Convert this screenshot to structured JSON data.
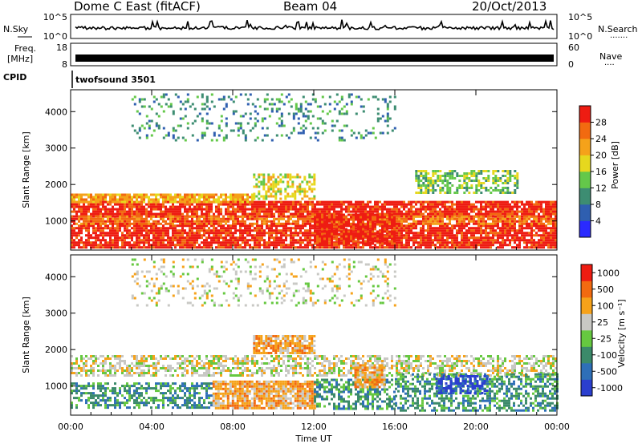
{
  "header": {
    "station": "Dome C East (fitACF)",
    "beam": "Beam 04",
    "date": "20/Oct/2013"
  },
  "sky_panel": {
    "left_label": "N.Sky",
    "right_label": "N.Search",
    "right_dots": "·······",
    "tick_top_left": "10^5",
    "tick_bottom_left": "10^0",
    "tick_top_right": "10^5",
    "tick_bottom_right": "10^0"
  },
  "freq_panel": {
    "left_label_1": "Freq.",
    "left_label_2": "[MHz]",
    "right_label": "Nave",
    "right_dots": "····",
    "tick_top_left": "18",
    "tick_bottom_left": "8",
    "tick_top_right": "60",
    "tick_bottom_right": "0"
  },
  "cpid_panel": {
    "label": "CPID",
    "program": "twofsound 3501"
  },
  "x_axis": {
    "label": "Time UT",
    "ticks": [
      "00:00",
      "04:00",
      "08:00",
      "12:00",
      "16:00",
      "20:00",
      "00:00"
    ]
  },
  "chart_data": [
    {
      "type": "heatmap",
      "panel": "power",
      "ylabel": "Slant Range [km]",
      "yticks": [
        1000,
        2000,
        3000,
        4000
      ],
      "ylim": [
        200,
        4600
      ],
      "xlim_hours": [
        0,
        24
      ],
      "colorbar": {
        "label": "Power [dB]",
        "ticks": [
          "4",
          "8",
          "12",
          "16",
          "20",
          "24",
          "28"
        ],
        "colors": [
          "#2a2aff",
          "#2f5fb0",
          "#3d8d72",
          "#64c84a",
          "#e6d81e",
          "#f5a21a",
          "#f26a10",
          "#ee1c12"
        ]
      },
      "bands": [
        {
          "t0": 0,
          "t1": 24,
          "r0": 300,
          "r1": 900,
          "level": 7
        },
        {
          "t0": 0,
          "t1": 24,
          "r0": 1150,
          "r1": 1550,
          "level": 7
        },
        {
          "t0": 0,
          "t1": 9,
          "r0": 1550,
          "r1": 1750,
          "level": 5
        },
        {
          "t0": 0,
          "t1": 24,
          "r0": 900,
          "r1": 1150,
          "level": 6
        },
        {
          "t0": 12,
          "t1": 16,
          "r0": 400,
          "r1": 1200,
          "level": 7
        },
        {
          "t0": 9,
          "t1": 12,
          "r0": 1600,
          "r1": 2300,
          "level": 4
        },
        {
          "t0": 3,
          "t1": 16,
          "r0": 3200,
          "r1": 4500,
          "level": 2
        },
        {
          "t0": 17,
          "t1": 22,
          "r0": 1800,
          "r1": 2400,
          "level": 3
        }
      ]
    },
    {
      "type": "heatmap",
      "panel": "velocity",
      "ylabel": "Slant Range [km]",
      "yticks": [
        1000,
        2000,
        3000,
        4000
      ],
      "ylim": [
        200,
        4600
      ],
      "xlim_hours": [
        0,
        24
      ],
      "colorbar": {
        "label": "Velocity [m s⁻¹]",
        "ticks": [
          "1000",
          "500",
          "100",
          "25",
          "-25",
          "-100",
          "-500",
          "-1000"
        ],
        "colors": [
          "#2b3fcf",
          "#2e6fb8",
          "#3b8a6a",
          "#66c840",
          "#c8c8c4",
          "#f6a21a",
          "#f26a10",
          "#ee1c12"
        ]
      },
      "bands": [
        {
          "t0": 0,
          "t1": 24,
          "r0": 1300,
          "r1": 1850,
          "level": 4
        },
        {
          "t0": 0,
          "t1": 7,
          "r0": 400,
          "r1": 1100,
          "level": 2
        },
        {
          "t0": 7,
          "t1": 12,
          "r0": 400,
          "r1": 1150,
          "level": 5
        },
        {
          "t0": 12,
          "t1": 16,
          "r0": 400,
          "r1": 1200,
          "level": 2
        },
        {
          "t0": 16,
          "t1": 24,
          "r0": 300,
          "r1": 1350,
          "level": 2
        },
        {
          "t0": 18,
          "t1": 20.5,
          "r0": 800,
          "r1": 1300,
          "level": 0
        },
        {
          "t0": 14,
          "t1": 15.5,
          "r0": 1000,
          "r1": 1600,
          "level": 5
        },
        {
          "t0": 3,
          "t1": 16,
          "r0": 3200,
          "r1": 4500,
          "level": 4
        },
        {
          "t0": 9,
          "t1": 12,
          "r0": 1900,
          "r1": 2400,
          "level": 5
        }
      ]
    }
  ]
}
